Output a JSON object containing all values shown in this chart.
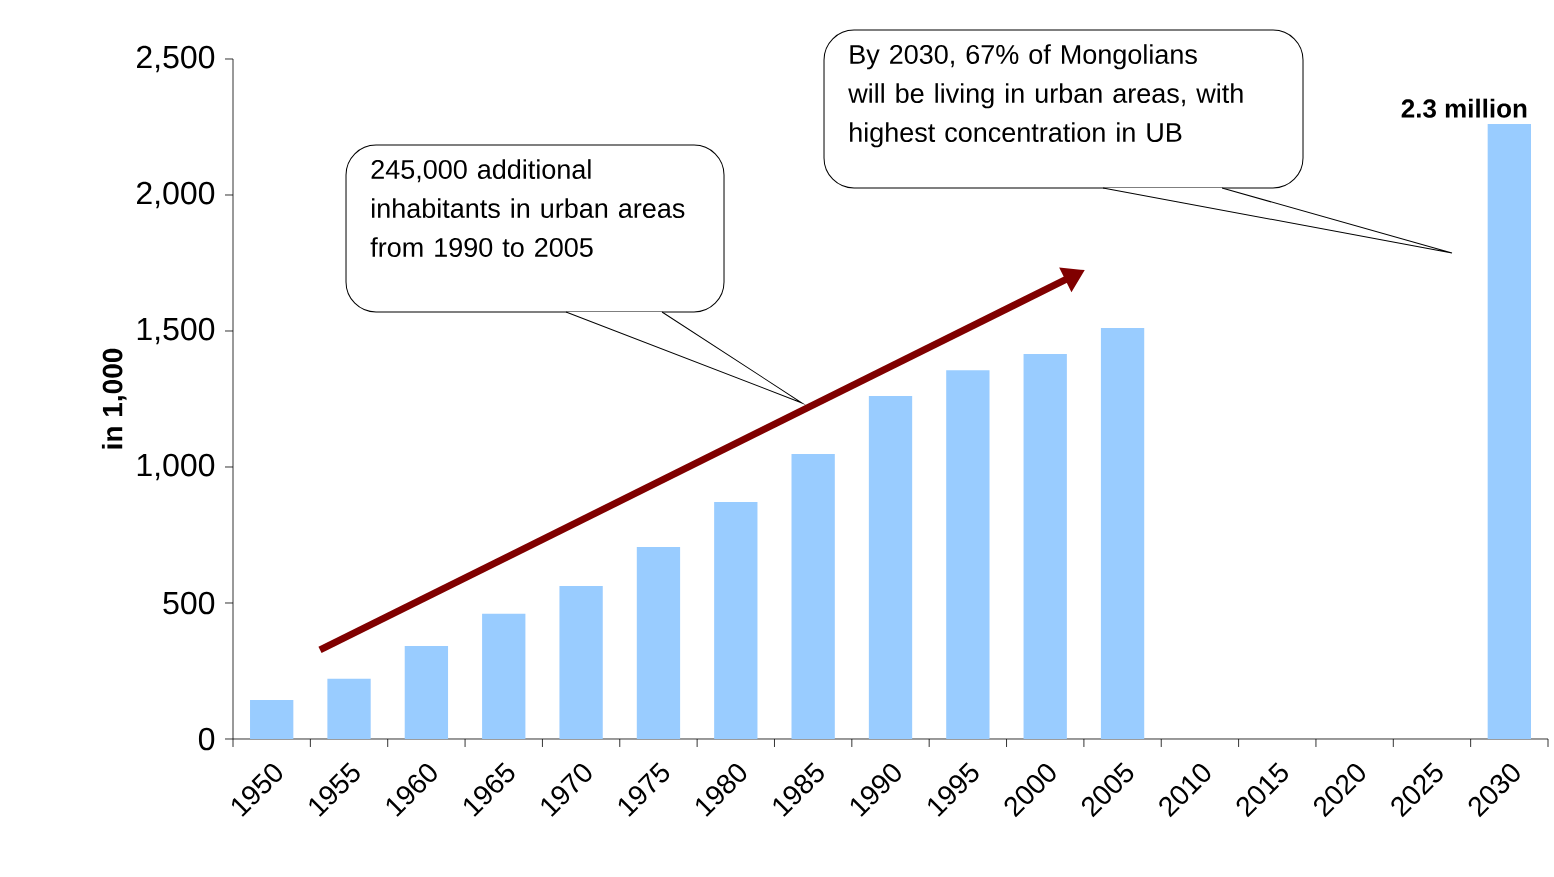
{
  "chart_data": {
    "type": "bar",
    "ylabel": "in 1,000",
    "categories": [
      "1950",
      "1955",
      "1960",
      "1965",
      "1970",
      "1975",
      "1980",
      "1985",
      "1990",
      "1995",
      "2000",
      "2005",
      "2010",
      "2015",
      "2020",
      "2025",
      "2030"
    ],
    "values": [
      143,
      221,
      342,
      460,
      562,
      706,
      871,
      1048,
      1261,
      1356,
      1415,
      1511,
      null,
      null,
      null,
      null,
      2261
    ],
    "color": "#99ccff",
    "ylim": [
      0,
      2500
    ],
    "yticks": [
      0,
      {
        "value": 500,
        "label": "500"
      },
      {
        "value": 1000,
        "label": "1,000"
      },
      {
        "value": 1500,
        "label": "1,500"
      },
      {
        "value": 2000,
        "label": "2,000"
      },
      {
        "value": 2500,
        "label": "2,500"
      }
    ],
    "annotations": [
      "245,000 additional inhabitants in urban areas from 1990 to 2005",
      "By 2030, 67% of Mongolians will be living in urban areas, with highest concentration in UB",
      {
        "text": "2.3 million",
        "x": "2030",
        "y": 2261
      }
    ]
  }
}
